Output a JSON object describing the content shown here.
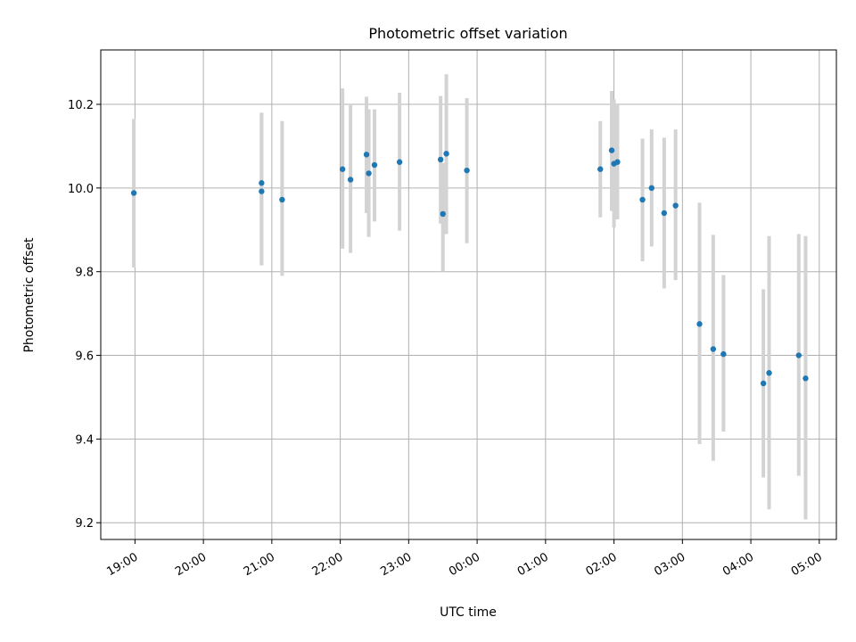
{
  "chart_data": {
    "type": "scatter",
    "title": "Photometric offset variation",
    "xlabel": "UTC time",
    "ylabel": "Photometric offset",
    "x_start": "18:30",
    "x_end": "05:15",
    "ylim": [
      9.16,
      10.33
    ],
    "grid": true,
    "colors": {
      "points": "#1f77b4",
      "errorbars": "#d3d3d3",
      "grid": "#b0b0b0"
    },
    "xticks": [
      {
        "time": "19:00",
        "label": "19:00"
      },
      {
        "time": "20:00",
        "label": "20:00"
      },
      {
        "time": "21:00",
        "label": "21:00"
      },
      {
        "time": "22:00",
        "label": "22:00"
      },
      {
        "time": "23:00",
        "label": "23:00"
      },
      {
        "time": "00:00",
        "label": "00:00"
      },
      {
        "time": "01:00",
        "label": "01:00"
      },
      {
        "time": "02:00",
        "label": "02:00"
      },
      {
        "time": "03:00",
        "label": "03:00"
      },
      {
        "time": "04:00",
        "label": "04:00"
      },
      {
        "time": "05:00",
        "label": "05:00"
      }
    ],
    "yticks": [
      {
        "value": 9.2,
        "label": "9.2"
      },
      {
        "value": 9.4,
        "label": "9.4"
      },
      {
        "value": 9.6,
        "label": "9.6"
      },
      {
        "value": 9.8,
        "label": "9.8"
      },
      {
        "value": 10.0,
        "label": "10.0"
      },
      {
        "value": 10.2,
        "label": "10.2"
      }
    ],
    "points": [
      {
        "time": "18:59",
        "y": 9.988,
        "err_low": 9.81,
        "err_high": 10.165
      },
      {
        "time": "20:51",
        "y": 10.012,
        "err_low": 9.815,
        "err_high": 10.18
      },
      {
        "time": "20:51",
        "y": 9.992,
        "err_low": 9.815,
        "err_high": 10.18
      },
      {
        "time": "21:09",
        "y": 9.972,
        "err_low": 9.79,
        "err_high": 10.16
      },
      {
        "time": "22:02",
        "y": 10.045,
        "err_low": 9.855,
        "err_high": 10.238
      },
      {
        "time": "22:09",
        "y": 10.02,
        "err_low": 9.845,
        "err_high": 10.2
      },
      {
        "time": "22:23",
        "y": 10.08,
        "err_low": 9.94,
        "err_high": 10.218
      },
      {
        "time": "22:25",
        "y": 10.035,
        "err_low": 9.883,
        "err_high": 10.188
      },
      {
        "time": "22:30",
        "y": 10.055,
        "err_low": 9.92,
        "err_high": 10.188
      },
      {
        "time": "22:52",
        "y": 10.062,
        "err_low": 9.898,
        "err_high": 10.228
      },
      {
        "time": "23:28",
        "y": 10.068,
        "err_low": 9.915,
        "err_high": 10.22
      },
      {
        "time": "23:30",
        "y": 9.938,
        "err_low": 9.8,
        "err_high": 10.06
      },
      {
        "time": "23:33",
        "y": 10.082,
        "err_low": 9.89,
        "err_high": 10.272
      },
      {
        "time": "23:51",
        "y": 10.042,
        "err_low": 9.868,
        "err_high": 10.215
      },
      {
        "time": "01:48",
        "y": 10.045,
        "err_low": 9.93,
        "err_high": 10.16
      },
      {
        "time": "01:58",
        "y": 10.09,
        "err_low": 9.945,
        "err_high": 10.232
      },
      {
        "time": "02:00",
        "y": 10.058,
        "err_low": 9.905,
        "err_high": 10.212
      },
      {
        "time": "02:03",
        "y": 10.062,
        "err_low": 9.925,
        "err_high": 10.2
      },
      {
        "time": "02:25",
        "y": 9.972,
        "err_low": 9.825,
        "err_high": 10.118
      },
      {
        "time": "02:33",
        "y": 10.0,
        "err_low": 9.86,
        "err_high": 10.14
      },
      {
        "time": "02:44",
        "y": 9.94,
        "err_low": 9.76,
        "err_high": 10.12
      },
      {
        "time": "02:54",
        "y": 9.958,
        "err_low": 9.78,
        "err_high": 10.14
      },
      {
        "time": "03:15",
        "y": 9.675,
        "err_low": 9.388,
        "err_high": 9.965
      },
      {
        "time": "03:27",
        "y": 9.615,
        "err_low": 9.348,
        "err_high": 9.888
      },
      {
        "time": "03:36",
        "y": 9.603,
        "err_low": 9.418,
        "err_high": 9.792
      },
      {
        "time": "04:11",
        "y": 9.533,
        "err_low": 9.308,
        "err_high": 9.758
      },
      {
        "time": "04:16",
        "y": 9.558,
        "err_low": 9.232,
        "err_high": 9.885
      },
      {
        "time": "04:42",
        "y": 9.6,
        "err_low": 9.312,
        "err_high": 9.89
      },
      {
        "time": "04:48",
        "y": 9.545,
        "err_low": 9.208,
        "err_high": 9.885
      }
    ]
  }
}
